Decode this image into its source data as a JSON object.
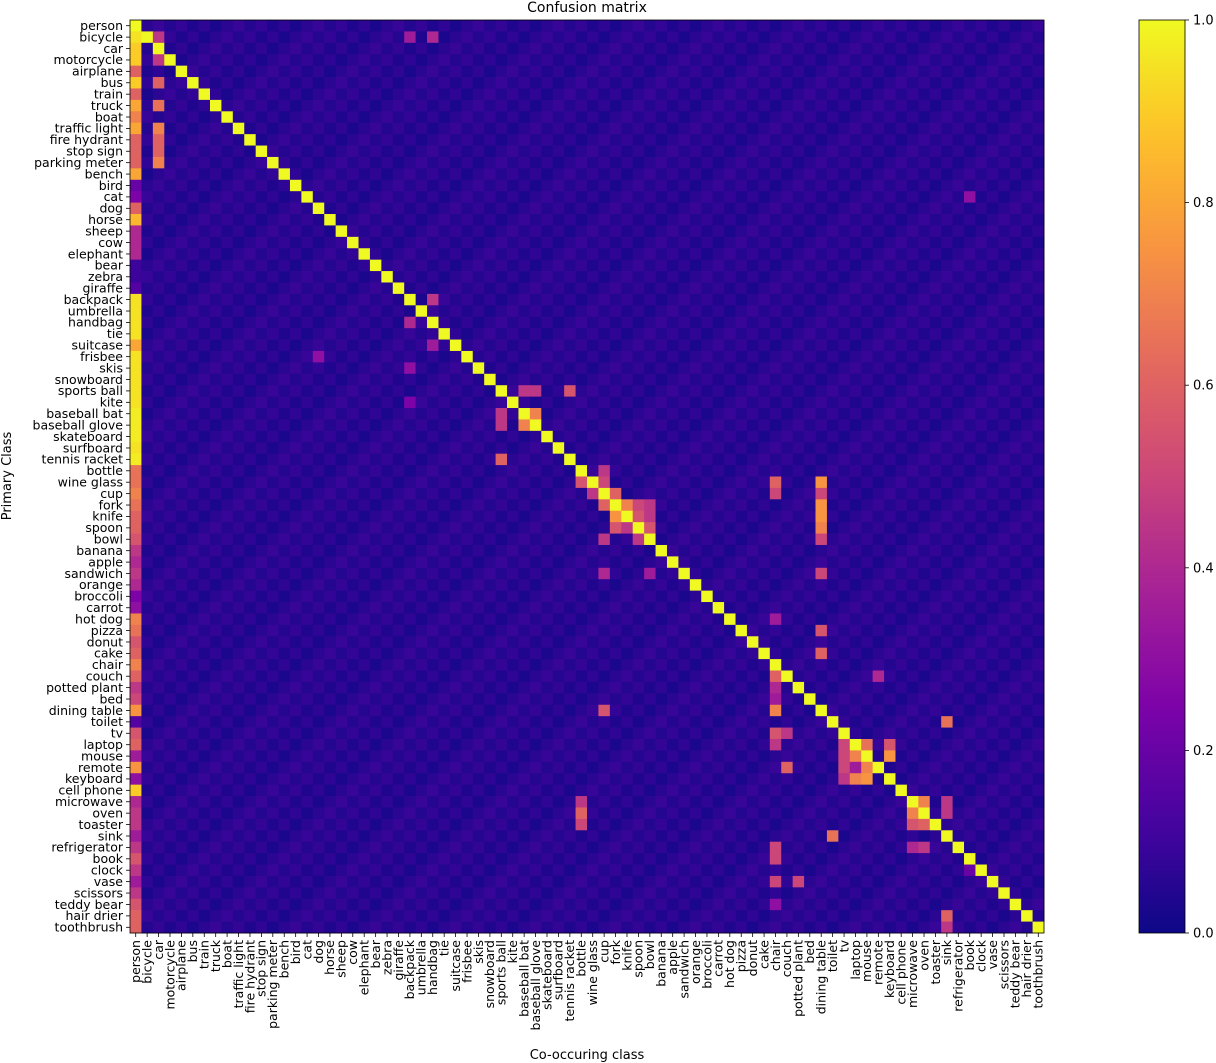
{
  "chart_data": {
    "type": "heatmap",
    "title": "Confusion matrix",
    "xlabel": "Co-occuring class",
    "ylabel": "Primary Class",
    "classes": [
      "person",
      "bicycle",
      "car",
      "motorcycle",
      "airplane",
      "bus",
      "train",
      "truck",
      "boat",
      "traffic light",
      "fire hydrant",
      "stop sign",
      "parking meter",
      "bench",
      "bird",
      "cat",
      "dog",
      "horse",
      "sheep",
      "cow",
      "elephant",
      "bear",
      "zebra",
      "giraffe",
      "backpack",
      "umbrella",
      "handbag",
      "tie",
      "suitcase",
      "frisbee",
      "skis",
      "snowboard",
      "sports ball",
      "kite",
      "baseball bat",
      "baseball glove",
      "skateboard",
      "surfboard",
      "tennis racket",
      "bottle",
      "wine glass",
      "cup",
      "fork",
      "knife",
      "spoon",
      "bowl",
      "banana",
      "apple",
      "sandwich",
      "orange",
      "broccoli",
      "carrot",
      "hot dog",
      "pizza",
      "donut",
      "cake",
      "chair",
      "couch",
      "potted plant",
      "bed",
      "dining table",
      "toilet",
      "tv",
      "laptop",
      "mouse",
      "remote",
      "keyboard",
      "cell phone",
      "microwave",
      "oven",
      "toaster",
      "sink",
      "refrigerator",
      "book",
      "clock",
      "vase",
      "scissors",
      "teddy bear",
      "hair drier",
      "toothbrush"
    ],
    "diagonal_value": 1.0,
    "background_value": 0.03,
    "notable_cells": [
      [
        "bicycle",
        "person",
        0.95
      ],
      [
        "car",
        "person",
        0.9
      ],
      [
        "motorcycle",
        "person",
        0.9
      ],
      [
        "airplane",
        "person",
        0.6
      ],
      [
        "bus",
        "person",
        0.9
      ],
      [
        "train",
        "person",
        0.6
      ],
      [
        "truck",
        "person",
        0.8
      ],
      [
        "boat",
        "person",
        0.7
      ],
      [
        "traffic light",
        "person",
        0.8
      ],
      [
        "fire hydrant",
        "person",
        0.6
      ],
      [
        "stop sign",
        "person",
        0.6
      ],
      [
        "parking meter",
        "person",
        0.6
      ],
      [
        "bench",
        "person",
        0.8
      ],
      [
        "bird",
        "person",
        0.2
      ],
      [
        "cat",
        "person",
        0.25
      ],
      [
        "dog",
        "person",
        0.6
      ],
      [
        "horse",
        "person",
        0.85
      ],
      [
        "sheep",
        "person",
        0.4
      ],
      [
        "cow",
        "person",
        0.4
      ],
      [
        "elephant",
        "person",
        0.4
      ],
      [
        "bear",
        "person",
        0.1
      ],
      [
        "zebra",
        "person",
        0.1
      ],
      [
        "giraffe",
        "person",
        0.15
      ],
      [
        "backpack",
        "person",
        0.95
      ],
      [
        "umbrella",
        "person",
        0.95
      ],
      [
        "handbag",
        "person",
        0.95
      ],
      [
        "tie",
        "person",
        0.95
      ],
      [
        "suitcase",
        "person",
        0.8
      ],
      [
        "frisbee",
        "person",
        0.95
      ],
      [
        "skis",
        "person",
        0.95
      ],
      [
        "snowboard",
        "person",
        0.95
      ],
      [
        "sports ball",
        "person",
        0.95
      ],
      [
        "kite",
        "person",
        0.95
      ],
      [
        "baseball bat",
        "person",
        0.97
      ],
      [
        "baseball glove",
        "person",
        0.97
      ],
      [
        "skateboard",
        "person",
        0.97
      ],
      [
        "surfboard",
        "person",
        0.95
      ],
      [
        "tennis racket",
        "person",
        0.97
      ],
      [
        "bottle",
        "person",
        0.65
      ],
      [
        "wine glass",
        "person",
        0.65
      ],
      [
        "cup",
        "person",
        0.7
      ],
      [
        "fork",
        "person",
        0.65
      ],
      [
        "knife",
        "person",
        0.6
      ],
      [
        "spoon",
        "person",
        0.6
      ],
      [
        "bowl",
        "person",
        0.55
      ],
      [
        "banana",
        "person",
        0.45
      ],
      [
        "apple",
        "person",
        0.4
      ],
      [
        "sandwich",
        "person",
        0.45
      ],
      [
        "orange",
        "person",
        0.4
      ],
      [
        "broccoli",
        "person",
        0.25
      ],
      [
        "carrot",
        "person",
        0.3
      ],
      [
        "hot dog",
        "person",
        0.7
      ],
      [
        "pizza",
        "person",
        0.65
      ],
      [
        "donut",
        "person",
        0.55
      ],
      [
        "cake",
        "person",
        0.6
      ],
      [
        "chair",
        "person",
        0.7
      ],
      [
        "couch",
        "person",
        0.6
      ],
      [
        "potted plant",
        "person",
        0.45
      ],
      [
        "bed",
        "person",
        0.5
      ],
      [
        "dining table",
        "person",
        0.75
      ],
      [
        "toilet",
        "person",
        0.15
      ],
      [
        "tv",
        "person",
        0.55
      ],
      [
        "laptop",
        "person",
        0.6
      ],
      [
        "mouse",
        "person",
        0.35
      ],
      [
        "remote",
        "person",
        0.75
      ],
      [
        "keyboard",
        "person",
        0.3
      ],
      [
        "cell phone",
        "person",
        0.9
      ],
      [
        "microwave",
        "person",
        0.4
      ],
      [
        "oven",
        "person",
        0.45
      ],
      [
        "toaster",
        "person",
        0.45
      ],
      [
        "sink",
        "person",
        0.35
      ],
      [
        "refrigerator",
        "person",
        0.45
      ],
      [
        "book",
        "person",
        0.55
      ],
      [
        "clock",
        "person",
        0.45
      ],
      [
        "vase",
        "person",
        0.35
      ],
      [
        "scissors",
        "person",
        0.45
      ],
      [
        "teddy bear",
        "person",
        0.55
      ],
      [
        "hair drier",
        "person",
        0.6
      ],
      [
        "toothbrush",
        "person",
        0.6
      ],
      [
        "bicycle",
        "car",
        0.45
      ],
      [
        "traffic light",
        "car",
        0.7
      ],
      [
        "fire hydrant",
        "car",
        0.6
      ],
      [
        "stop sign",
        "car",
        0.6
      ],
      [
        "parking meter",
        "car",
        0.7
      ],
      [
        "truck",
        "car",
        0.65
      ],
      [
        "bus",
        "car",
        0.6
      ],
      [
        "motorcycle",
        "car",
        0.45
      ],
      [
        "baseball bat",
        "baseball glove",
        0.7
      ],
      [
        "baseball glove",
        "baseball bat",
        0.7
      ],
      [
        "sports ball",
        "baseball bat",
        0.45
      ],
      [
        "sports ball",
        "baseball glove",
        0.45
      ],
      [
        "sports ball",
        "tennis racket",
        0.55
      ],
      [
        "tennis racket",
        "sports ball",
        0.6
      ],
      [
        "baseball bat",
        "sports ball",
        0.45
      ],
      [
        "baseball glove",
        "sports ball",
        0.45
      ],
      [
        "cup",
        "fork",
        0.6
      ],
      [
        "fork",
        "cup",
        0.6
      ],
      [
        "fork",
        "knife",
        0.7
      ],
      [
        "knife",
        "fork",
        0.75
      ],
      [
        "fork",
        "spoon",
        0.5
      ],
      [
        "spoon",
        "fork",
        0.55
      ],
      [
        "knife",
        "spoon",
        0.55
      ],
      [
        "spoon",
        "knife",
        0.45
      ],
      [
        "spoon",
        "bowl",
        0.55
      ],
      [
        "fork",
        "bowl",
        0.45
      ],
      [
        "knife",
        "bowl",
        0.45
      ],
      [
        "bowl",
        "spoon",
        0.45
      ],
      [
        "bowl",
        "cup",
        0.45
      ],
      [
        "cup",
        "wine glass",
        0.45
      ],
      [
        "wine glass",
        "cup",
        0.5
      ],
      [
        "wine glass",
        "bottle",
        0.55
      ],
      [
        "bottle",
        "cup",
        0.45
      ],
      [
        "sandwich",
        "cup",
        0.4
      ],
      [
        "sandwich",
        "bowl",
        0.35
      ],
      [
        "fork",
        "dining table",
        0.75
      ],
      [
        "knife",
        "dining table",
        0.75
      ],
      [
        "spoon",
        "dining table",
        0.7
      ],
      [
        "wine glass",
        "dining table",
        0.75
      ],
      [
        "cup",
        "dining table",
        0.5
      ],
      [
        "bowl",
        "dining table",
        0.5
      ],
      [
        "pizza",
        "dining table",
        0.55
      ],
      [
        "cake",
        "dining table",
        0.6
      ],
      [
        "sandwich",
        "dining table",
        0.5
      ],
      [
        "dining table",
        "chair",
        0.7
      ],
      [
        "couch",
        "chair",
        0.6
      ],
      [
        "potted plant",
        "chair",
        0.4
      ],
      [
        "wine glass",
        "chair",
        0.6
      ],
      [
        "cup",
        "chair",
        0.5
      ],
      [
        "tv",
        "chair",
        0.55
      ],
      [
        "laptop",
        "chair",
        0.45
      ],
      [
        "refrigerator",
        "chair",
        0.5
      ],
      [
        "book",
        "chair",
        0.5
      ],
      [
        "vase",
        "chair",
        0.5
      ],
      [
        "mouse",
        "keyboard",
        0.75
      ],
      [
        "keyboard",
        "mouse",
        0.75
      ],
      [
        "laptop",
        "mouse",
        0.65
      ],
      [
        "laptop",
        "keyboard",
        0.55
      ],
      [
        "mouse",
        "laptop",
        0.7
      ],
      [
        "keyboard",
        "laptop",
        0.7
      ],
      [
        "remote",
        "laptop",
        0.35
      ],
      [
        "remote",
        "couch",
        0.6
      ],
      [
        "remote",
        "mouse",
        0.7
      ],
      [
        "remote",
        "tv",
        0.5
      ],
      [
        "laptop",
        "tv",
        0.5
      ],
      [
        "mouse",
        "tv",
        0.5
      ],
      [
        "keyboard",
        "tv",
        0.45
      ],
      [
        "microwave",
        "oven",
        0.7
      ],
      [
        "oven",
        "microwave",
        0.7
      ],
      [
        "toaster",
        "oven",
        0.6
      ],
      [
        "toaster",
        "microwave",
        0.55
      ],
      [
        "oven",
        "sink",
        0.45
      ],
      [
        "microwave",
        "sink",
        0.45
      ],
      [
        "sink",
        "toilet",
        0.65
      ],
      [
        "toilet",
        "sink",
        0.65
      ],
      [
        "hair drier",
        "sink",
        0.6
      ],
      [
        "refrigerator",
        "oven",
        0.45
      ],
      [
        "refrigerator",
        "microwave",
        0.4
      ],
      [
        "oven",
        "bottle",
        0.6
      ],
      [
        "microwave",
        "bottle",
        0.45
      ],
      [
        "toaster",
        "bottle",
        0.5
      ],
      [
        "bicycle",
        "handbag",
        0.4
      ],
      [
        "bicycle",
        "backpack",
        0.35
      ],
      [
        "backpack",
        "handbag",
        0.45
      ],
      [
        "handbag",
        "backpack",
        0.4
      ],
      [
        "suitcase",
        "handbag",
        0.35
      ],
      [
        "frisbee",
        "dog",
        0.3
      ],
      [
        "kite",
        "backpack",
        0.25
      ],
      [
        "skis",
        "backpack",
        0.3
      ],
      [
        "cat",
        "book",
        0.3
      ],
      [
        "hot dog",
        "chair",
        0.35
      ],
      [
        "clock",
        "book",
        0.2
      ],
      [
        "teddy bear",
        "chair",
        0.3
      ],
      [
        "toothbrush",
        "sink",
        0.45
      ],
      [
        "vase",
        "potted plant",
        0.5
      ],
      [
        "couch",
        "remote",
        0.4
      ],
      [
        "dining table",
        "cup",
        0.55
      ],
      [
        "bed",
        "chair",
        0.35
      ],
      [
        "tv",
        "couch",
        0.45
      ]
    ],
    "colorbar": {
      "colormap": "plasma",
      "range": [
        0.0,
        1.0
      ],
      "ticks": [
        "0.0",
        "0.2",
        "0.4",
        "0.6",
        "0.8",
        "1.0"
      ]
    }
  }
}
